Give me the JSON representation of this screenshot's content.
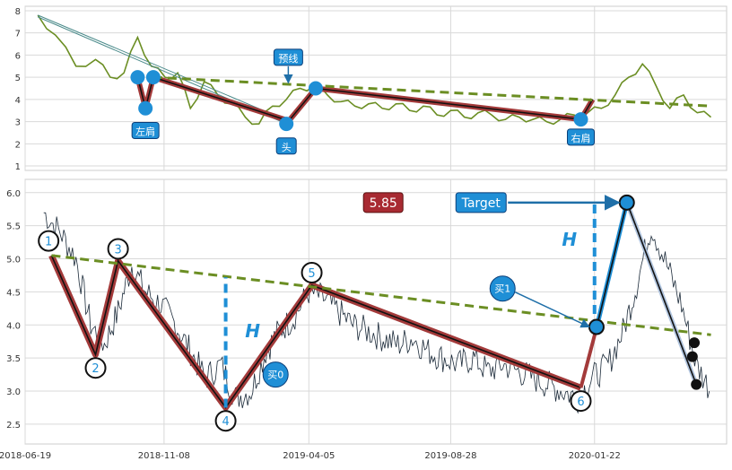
{
  "chart_data": [
    {
      "type": "line",
      "panel": "top",
      "ylim": [
        0.8,
        8.2
      ],
      "yticks": [
        1,
        2,
        3,
        4,
        5,
        6,
        7,
        8
      ],
      "xlim": [
        "2018-06-19",
        "2020-06-05"
      ],
      "grid": true,
      "price_series": {
        "name": "",
        "color": "#6b8e23",
        "x": [
          "2018-07-02",
          "2018-07-20",
          "2018-08-10",
          "2018-08-30",
          "2018-09-14",
          "2018-09-28",
          "2018-10-12",
          "2018-10-26",
          "2018-11-09",
          "2018-11-22",
          "2018-12-05",
          "2018-12-19",
          "2019-01-02",
          "2019-01-16",
          "2019-01-30",
          "2019-02-13",
          "2019-02-27",
          "2019-03-13",
          "2019-03-27",
          "2019-04-10",
          "2019-04-24",
          "2019-05-08",
          "2019-05-22",
          "2019-06-05",
          "2019-06-19",
          "2019-07-03",
          "2019-07-17",
          "2019-07-31",
          "2019-08-14",
          "2019-08-28",
          "2019-09-11",
          "2019-09-25",
          "2019-10-09",
          "2019-10-23",
          "2019-11-06",
          "2019-11-20",
          "2019-12-04",
          "2019-12-18",
          "2020-01-01",
          "2020-01-15",
          "2020-01-29",
          "2020-02-12",
          "2020-02-26",
          "2020-03-11",
          "2020-03-25",
          "2020-04-08",
          "2020-04-22",
          "2020-05-06",
          "2020-05-20"
        ],
        "y": [
          7.8,
          6.9,
          5.5,
          5.8,
          5.0,
          5.2,
          6.8,
          5.5,
          5.0,
          5.2,
          3.6,
          4.8,
          4.2,
          3.8,
          3.2,
          2.9,
          3.7,
          4.0,
          4.5,
          4.6,
          4.2,
          3.9,
          3.7,
          3.8,
          3.6,
          3.8,
          3.5,
          3.7,
          3.3,
          3.5,
          3.2,
          3.4,
          3.3,
          3.1,
          3.2,
          3.1,
          3.0,
          3.1,
          3.3,
          3.4,
          3.6,
          4.2,
          5.0,
          5.6,
          4.6,
          3.6,
          4.2,
          3.4,
          3.2
        ]
      },
      "pattern_path": {
        "points": [
          [
            "2018-07-02",
            7.8
          ],
          [
            "2018-10-12",
            5.0
          ],
          [
            "2018-10-20",
            3.6
          ],
          [
            "2018-10-28",
            5.0
          ],
          [
            "2019-03-11",
            3.1
          ],
          [
            "2019-03-13",
            2.9
          ],
          [
            "2019-04-12",
            4.5
          ],
          [
            "2020-01-08",
            3.1
          ],
          [
            "2020-01-20",
            4.0
          ]
        ]
      },
      "neckline": {
        "x": [
          "2018-10-28",
          "2020-05-20"
        ],
        "y": [
          5.0,
          3.7
        ]
      },
      "markers": [
        {
          "x": "2018-10-12",
          "y": 5.0
        },
        {
          "x": "2018-10-20",
          "y": 3.6
        },
        {
          "x": "2018-10-28",
          "y": 5.0
        },
        {
          "x": "2019-03-13",
          "y": 2.9
        },
        {
          "x": "2019-04-12",
          "y": 4.5
        },
        {
          "x": "2020-01-08",
          "y": 3.1
        }
      ],
      "annotations": [
        {
          "text": "左肩",
          "x": "2018-10-20",
          "y": 2.6
        },
        {
          "text": "头",
          "x": "2019-03-13",
          "y": 1.9
        },
        {
          "text": "右肩",
          "x": "2020-01-08",
          "y": 2.3
        },
        {
          "text": "预线",
          "x": "2019-03-15",
          "y": 5.9
        }
      ]
    },
    {
      "type": "line",
      "panel": "bottom",
      "ylim": [
        2.2,
        6.2
      ],
      "yticks": [
        2.5,
        3.0,
        3.5,
        4.0,
        4.5,
        5.0,
        5.5,
        6.0
      ],
      "xticks": [
        "2018-06-19",
        "2018-11-08",
        "2019-04-05",
        "2019-08-28",
        "2020-01-22"
      ],
      "xlim": [
        "2018-06-19",
        "2020-06-05"
      ],
      "grid": true,
      "price_series": {
        "name": "",
        "color": "#1c2b3a",
        "x": [
          "2018-07-08",
          "2018-07-25",
          "2018-08-10",
          "2018-08-25",
          "2018-09-08",
          "2018-09-22",
          "2018-10-06",
          "2018-10-20",
          "2018-11-05",
          "2018-11-20",
          "2018-12-05",
          "2018-12-20",
          "2019-01-05",
          "2019-01-20",
          "2019-02-05",
          "2019-02-20",
          "2019-03-05",
          "2019-03-20",
          "2019-04-05",
          "2019-04-20",
          "2019-05-05",
          "2019-05-20",
          "2019-06-05",
          "2019-06-20",
          "2019-07-05",
          "2019-07-20",
          "2019-08-05",
          "2019-08-20",
          "2019-09-05",
          "2019-09-20",
          "2019-10-05",
          "2019-10-20",
          "2019-11-05",
          "2019-11-20",
          "2019-12-05",
          "2019-12-20",
          "2020-01-05",
          "2020-01-20",
          "2020-02-05",
          "2020-02-20",
          "2020-03-05",
          "2020-03-20",
          "2020-04-05",
          "2020-04-20",
          "2020-05-05",
          "2020-05-20"
        ],
        "y": [
          5.7,
          5.4,
          5.0,
          4.0,
          3.7,
          4.2,
          4.9,
          4.5,
          4.3,
          4.0,
          3.6,
          3.2,
          3.4,
          2.9,
          3.0,
          3.6,
          3.9,
          4.1,
          4.5,
          4.4,
          4.2,
          4.0,
          3.9,
          3.8,
          3.7,
          3.8,
          3.6,
          3.5,
          3.4,
          3.5,
          3.3,
          3.4,
          3.3,
          3.2,
          3.1,
          3.0,
          2.9,
          3.2,
          3.4,
          3.9,
          4.6,
          5.5,
          4.9,
          4.3,
          3.4,
          3.0
        ]
      },
      "pattern_path": {
        "points": [
          [
            "2018-07-16",
            5.05
          ],
          [
            "2018-08-30",
            3.55
          ],
          [
            "2018-09-22",
            4.97
          ],
          [
            "2019-01-10",
            2.75
          ],
          [
            "2019-04-08",
            4.6
          ],
          [
            "2020-01-08",
            3.05
          ],
          [
            "2020-01-24",
            3.95
          ],
          [
            "2020-02-24",
            5.85
          ]
        ]
      },
      "neckline": {
        "x": [
          "2018-07-16",
          "2020-05-20"
        ],
        "y": [
          5.05,
          3.85
        ]
      },
      "point_labels": [
        {
          "text": "1",
          "x": "2018-07-13",
          "y": 5.27
        },
        {
          "text": "2",
          "x": "2018-08-30",
          "y": 3.35
        },
        {
          "text": "3",
          "x": "2018-09-22",
          "y": 5.15
        },
        {
          "text": "4",
          "x": "2019-01-10",
          "y": 2.55
        },
        {
          "text": "5",
          "x": "2019-04-08",
          "y": 4.79
        },
        {
          "text": "6",
          "x": "2020-01-08",
          "y": 2.85
        }
      ],
      "h_measures": [
        {
          "text": "H",
          "x": "2019-01-10",
          "y_from": 2.75,
          "y_to": 4.72
        },
        {
          "text": "H",
          "x": "2020-01-22",
          "y_from": 3.95,
          "y_to": 5.85
        }
      ],
      "annotations": [
        {
          "text": "5.85",
          "x": "2019-06-20",
          "y": 5.85
        },
        {
          "text": "Target",
          "x": "2019-09-28",
          "y": 5.85
        },
        {
          "text": "买1",
          "x": "2019-10-20",
          "y": 4.55
        },
        {
          "text": "买0",
          "x": "2019-03-02",
          "y": 3.25
        }
      ],
      "buy_point": {
        "x": "2020-01-24",
        "y": 3.97
      },
      "target_point": {
        "x": "2020-02-24",
        "y": 5.85
      },
      "black_dots": [
        {
          "x": "2020-05-03",
          "y": 3.73
        },
        {
          "x": "2020-05-01",
          "y": 3.52
        },
        {
          "x": "2020-05-05",
          "y": 3.1
        }
      ]
    }
  ]
}
